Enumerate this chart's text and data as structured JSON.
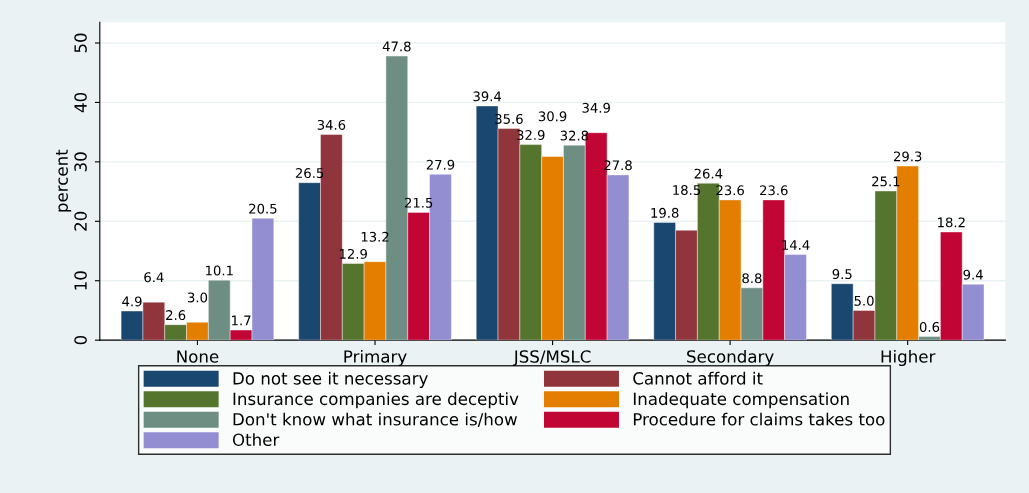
{
  "chart_data": {
    "type": "bar",
    "ylabel": "percent",
    "categories": [
      "None",
      "Primary",
      "JSS/MSLC",
      "Secondary",
      "Higher"
    ],
    "series": [
      {
        "name": "Do not see it necessary",
        "color": "#1a476f",
        "values": [
          4.9,
          26.5,
          39.4,
          19.8,
          9.5
        ],
        "value_labels": [
          "4.9",
          "26.5",
          "39.4",
          "19.8",
          "9.5"
        ]
      },
      {
        "name": "Cannot afford it",
        "color": "#90353b",
        "values": [
          6.4,
          34.6,
          35.6,
          18.5,
          5.0
        ],
        "value_labels": [
          "6.4",
          "34.6",
          "35.6",
          "18.5",
          "5.0"
        ]
      },
      {
        "name": "Insurance companies are deceptiv",
        "color": "#55752f",
        "values": [
          2.6,
          12.9,
          32.9,
          26.4,
          25.1
        ],
        "value_labels": [
          "2.6",
          "12.9",
          "32.9",
          "26.4",
          "25.1"
        ]
      },
      {
        "name": "Inadequate compensation",
        "color": "#e37e00",
        "values": [
          3.0,
          13.2,
          30.9,
          23.6,
          29.3
        ],
        "value_labels": [
          "3.0",
          "13.2",
          "30.9",
          "23.6",
          "29.3"
        ]
      },
      {
        "name": "Don't know what insurance is/how",
        "color": "#6e8e84",
        "values": [
          10.1,
          47.8,
          32.8,
          8.8,
          0.6
        ],
        "value_labels": [
          "10.1",
          "47.8",
          "32.8",
          "8.8",
          "0.6"
        ]
      },
      {
        "name": "Procedure for claims takes too",
        "color": "#c10534",
        "values": [
          1.7,
          21.5,
          34.9,
          23.6,
          18.2
        ],
        "value_labels": [
          "1.7",
          "21.5",
          "34.9",
          "23.6",
          "18.2"
        ]
      },
      {
        "name": "Other",
        "color": "#938dd2",
        "values": [
          20.5,
          27.9,
          27.8,
          14.4,
          9.4
        ],
        "value_labels": [
          "20.5",
          "27.9",
          "27.8",
          "14.4",
          "9.4"
        ]
      }
    ],
    "ylim": [
      0,
      53.5
    ],
    "yticks": [
      0,
      10,
      20,
      30,
      40,
      50
    ],
    "grid": "y",
    "legend": "bottom"
  }
}
